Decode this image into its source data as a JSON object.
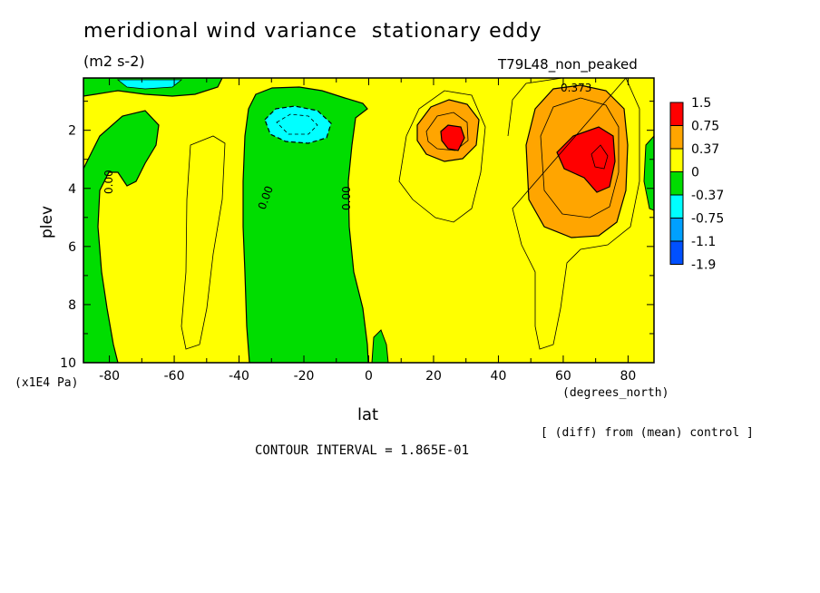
{
  "chart_data": {
    "type": "heatmap",
    "title": "meridional wind variance  stationary eddy",
    "units": "(m2 s-2)",
    "run_label": "T79L48_non_peaked",
    "xlabel": "lat",
    "x_units": "(degrees_north)",
    "ylabel": "plev",
    "y_scale": "(x1E4 Pa)",
    "x_ticks": [
      -80,
      -60,
      -40,
      -20,
      0,
      20,
      40,
      60,
      80
    ],
    "y_ticks": [
      2,
      4,
      6,
      8,
      10
    ],
    "xlim": [
      -88,
      88
    ],
    "ylim": [
      10,
      0.2
    ],
    "legend_levels": [
      "1.5",
      "0.75",
      "0.37",
      "0",
      "-0.37",
      "-0.75",
      "-1.1",
      "-1.9"
    ],
    "legend_colors": [
      "#ff0000",
      "#ffa500",
      "#ffff00",
      "#00dd00",
      "#00ffff",
      "#00a0ff",
      "#0050ff"
    ],
    "contour_labels": [
      "0.00",
      "0.00",
      "0.00",
      "0.373"
    ],
    "contour_interval": "CONTOUR INTERVAL = 1.865E-01",
    "note": "[ (diff) from (mean) control ]",
    "features": [
      {
        "name": "positive maximum",
        "lat": 72,
        "plev": 2.6,
        "value_class": "1.5"
      },
      {
        "name": "positive maximum",
        "lat": 26,
        "plev": 2.3,
        "value_class": "1.5"
      },
      {
        "name": "negative minimum",
        "lat": -24,
        "plev": 1.8,
        "value_class": "-0.75"
      },
      {
        "name": "negative band",
        "lat_range": [
          -38,
          -5
        ],
        "plev_range": [
          0.5,
          10
        ],
        "value_class": "-0.37"
      }
    ]
  },
  "colors": {
    "background": "#ffffff",
    "yellow": "#ffff00",
    "green": "#00dd00",
    "orange": "#ffa500",
    "red": "#ff0000",
    "cyan": "#00ffff",
    "blue": "#00a0ff"
  }
}
